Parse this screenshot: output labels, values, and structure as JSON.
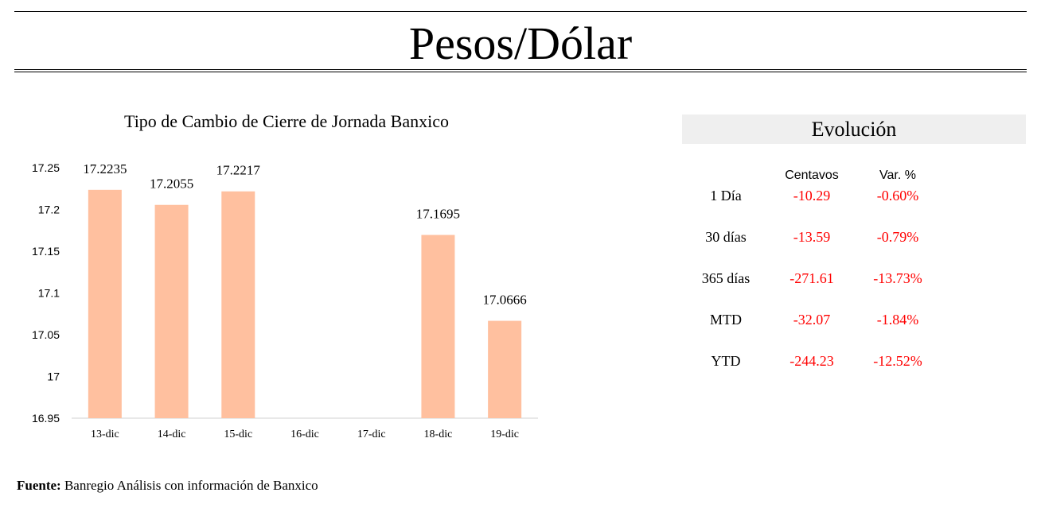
{
  "header": {
    "title": "Pesos/Dólar"
  },
  "chart_data": {
    "type": "bar",
    "title": "Tipo de Cambio de Cierre de Jornada Banxico",
    "categories": [
      "13-dic",
      "14-dic",
      "15-dic",
      "16-dic",
      "17-dic",
      "18-dic",
      "19-dic"
    ],
    "values": [
      17.2235,
      17.2055,
      17.2217,
      null,
      null,
      17.1695,
      17.0666
    ],
    "data_labels": [
      "17.2235",
      "17.2055",
      "17.2217",
      "",
      "",
      "17.1695",
      "17.0666"
    ],
    "yticks": [
      "16.95",
      "17",
      "17.05",
      "17.1",
      "17.15",
      "17.2",
      "17.25"
    ],
    "ylim": [
      16.95,
      17.25
    ],
    "bar_color": "#ffc09f",
    "grid": false
  },
  "evolucion": {
    "title": "Evolución",
    "columns": [
      "Centavos",
      "Var. %"
    ],
    "rows": [
      {
        "label": "1 Día",
        "centavos": "-10.29",
        "var": "-0.60%"
      },
      {
        "label": "30 días",
        "centavos": "-13.59",
        "var": "-0.79%"
      },
      {
        "label": "365 días",
        "centavos": "-271.61",
        "var": "-13.73%"
      },
      {
        "label": "MTD",
        "centavos": "-32.07",
        "var": "-1.84%"
      },
      {
        "label": "YTD",
        "centavos": "-244.23",
        "var": "-12.52%"
      }
    ],
    "negative_color": "#ff0000"
  },
  "source": {
    "label": "Fuente:",
    "text": "Banregio Análisis con información de Banxico"
  }
}
